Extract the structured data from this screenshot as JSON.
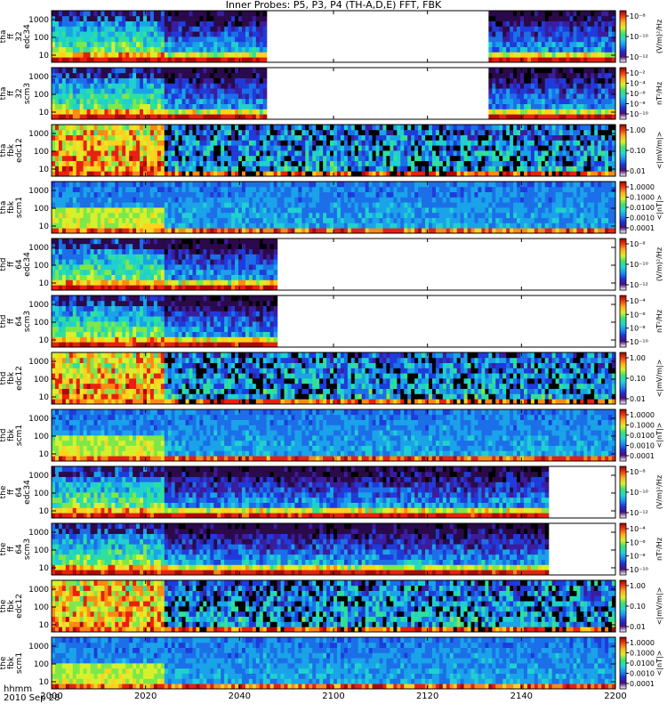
{
  "title": "Inner Probes: P5, P3, P4 (TH-A,D,E) FFT, FBK",
  "footer": {
    "time_label": "hhmm",
    "date_label": "2010 Sep 28"
  },
  "x_ticks": [
    "2000",
    "2020",
    "2040",
    "2100",
    "2120",
    "2140",
    "2200"
  ],
  "colors": {
    "background": "#1a1d8f",
    "frame": "#000000"
  },
  "chart_data": {
    "type": "heatmap",
    "title": "Inner Probes: P5, P3, P4 (TH-A,D,E) FFT, FBK",
    "x_ticks": [
      "2000",
      "2020",
      "2040",
      "2100",
      "2120",
      "2140",
      "2200"
    ],
    "panels": [
      {
        "label": [
          "tha",
          "ff",
          "32",
          "edc34"
        ],
        "unit": "(V/m)²/Hz",
        "cbar_ticks": [
          "10⁻⁸",
          "10⁻¹⁰",
          "10⁻¹²"
        ],
        "y_ticks": [
          "10",
          "100",
          "1000"
        ],
        "data_span": [
          [
            0,
            0.38
          ],
          [
            0.78,
            1.0
          ]
        ]
      },
      {
        "label": [
          "tha",
          "ff",
          "32",
          "scm3"
        ],
        "unit": "nT²/Hz",
        "cbar_ticks": [
          "10⁻²",
          "10⁻⁴",
          "10⁻⁶",
          "10⁻⁸",
          "10⁻¹⁰"
        ],
        "y_ticks": [
          "10",
          "100",
          "1000"
        ],
        "data_span": [
          [
            0,
            0.38
          ],
          [
            0.78,
            1.0
          ]
        ]
      },
      {
        "label": [
          "tha",
          "fbk",
          "edc12"
        ],
        "unit": "<|mV/m|>",
        "cbar_ticks": [
          "1.00",
          "0.10",
          "0.01"
        ],
        "y_ticks": [
          "10",
          "100",
          "1000"
        ],
        "data_span": [
          [
            0,
            1.0
          ]
        ]
      },
      {
        "label": [
          "tha",
          "fbk",
          "scm1"
        ],
        "unit": "<|nT|>",
        "cbar_ticks": [
          "1.0000",
          "0.1000",
          "0.0100",
          "0.0010",
          "0.0001"
        ],
        "y_ticks": [
          "10",
          "100",
          "1000"
        ],
        "data_span": [
          [
            0,
            1.0
          ]
        ]
      },
      {
        "label": [
          "thd",
          "ff",
          "64",
          "edc34"
        ],
        "unit": "(V/m)²/Hz",
        "cbar_ticks": [
          "10⁻⁸",
          "10⁻¹⁰",
          "10⁻¹²"
        ],
        "y_ticks": [
          "10",
          "100",
          "1000"
        ],
        "data_span": [
          [
            0,
            0.4
          ]
        ]
      },
      {
        "label": [
          "thd",
          "ff",
          "64",
          "scm3"
        ],
        "unit": "nT²/Hz",
        "cbar_ticks": [
          "10⁻⁴",
          "10⁻⁶",
          "10⁻⁸",
          "10⁻¹⁰"
        ],
        "y_ticks": [
          "10",
          "100",
          "1000"
        ],
        "data_span": [
          [
            0,
            0.4
          ]
        ]
      },
      {
        "label": [
          "thd",
          "fbk",
          "edc12"
        ],
        "unit": "<|mV/m|>",
        "cbar_ticks": [
          "1.00",
          "0.10",
          "0.01"
        ],
        "y_ticks": [
          "10",
          "100",
          "1000"
        ],
        "data_span": [
          [
            0,
            1.0
          ]
        ]
      },
      {
        "label": [
          "thd",
          "fbk",
          "scm1"
        ],
        "unit": "<|nT|>",
        "cbar_ticks": [
          "1.0000",
          "0.1000",
          "0.0100",
          "0.0010",
          "0.0001"
        ],
        "y_ticks": [
          "10",
          "100",
          "1000"
        ],
        "data_span": [
          [
            0,
            1.0
          ]
        ]
      },
      {
        "label": [
          "the",
          "ff",
          "64",
          "edc34"
        ],
        "unit": "(V/m)²/Hz",
        "cbar_ticks": [
          "10⁻⁸",
          "10⁻¹⁰",
          "10⁻¹²"
        ],
        "y_ticks": [
          "10",
          "100",
          "1000"
        ],
        "data_span": [
          [
            0,
            0.88
          ]
        ]
      },
      {
        "label": [
          "the",
          "ff",
          "64",
          "scm3"
        ],
        "unit": "nT²/Hz",
        "cbar_ticks": [
          "10⁻⁴",
          "10⁻⁶",
          "10⁻⁸",
          "10⁻¹⁰"
        ],
        "y_ticks": [
          "10",
          "100",
          "1000"
        ],
        "data_span": [
          [
            0,
            0.88
          ]
        ]
      },
      {
        "label": [
          "the",
          "fbk",
          "edc12"
        ],
        "unit": "<|mV/m|>",
        "cbar_ticks": [
          "1.00",
          "0.10",
          "0.01"
        ],
        "y_ticks": [
          "10",
          "100",
          "1000"
        ],
        "data_span": [
          [
            0,
            1.0
          ]
        ]
      },
      {
        "label": [
          "the",
          "fbk",
          "scm1"
        ],
        "unit": "<|nT|>",
        "cbar_ticks": [
          "1.0000",
          "0.1000",
          "0.0100",
          "0.0010",
          "0.0001"
        ],
        "y_ticks": [
          "10",
          "100",
          "1000"
        ],
        "data_span": [
          [
            0,
            1.0
          ]
        ]
      }
    ]
  }
}
